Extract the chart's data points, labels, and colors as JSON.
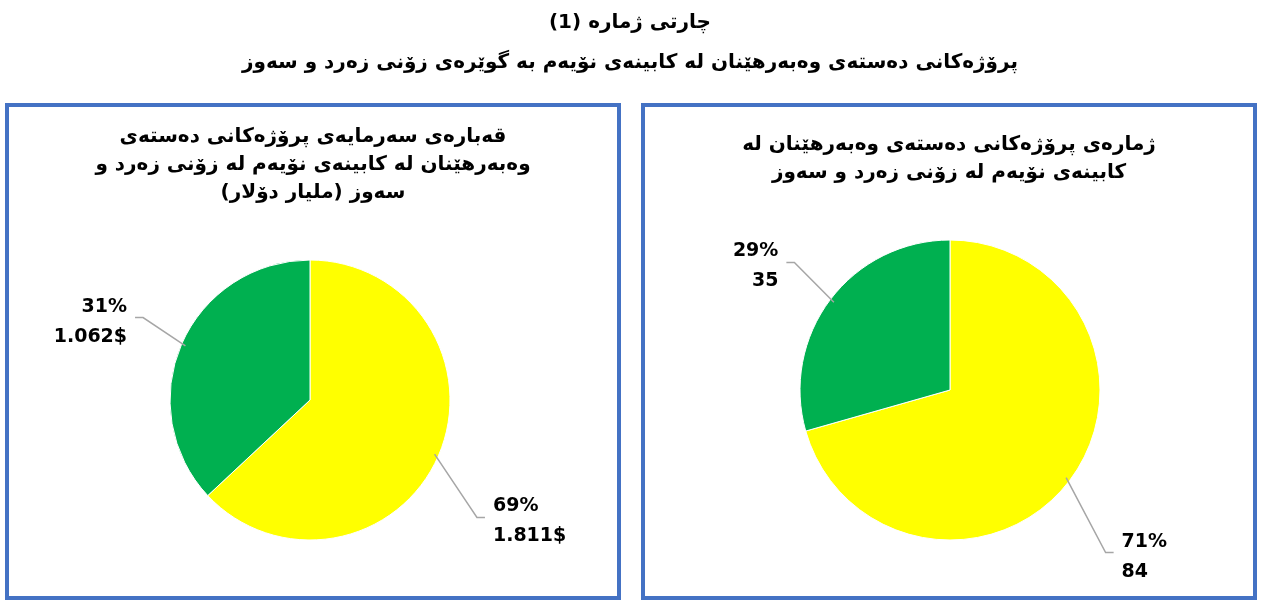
{
  "chart_data": [
    {
      "type": "pie",
      "title": "قەبارەی سەرمایەی  پرۆژەکانی دەستەی وەبەرهێنان لە کابینەی نۆیەم لە زۆنی زەرد و سەوز (ملیار دۆلار)",
      "annotations": [
        "چارتی ژمارە (1)",
        "پرۆژەکانی دەستەی وەبەرهێنان لە کابینەی نۆیەم بە گوێرەی زۆنی زەرد و سەوز"
      ],
      "categories": [
        null,
        null
      ],
      "values": [
        1.811,
        1.062
      ],
      "colors": [
        "#ffff00",
        "#00b050"
      ],
      "value_labels": [
        "69%\n1.811$",
        "31%\n1.062$"
      ]
    },
    {
      "type": "pie",
      "title": "ژمارەی پرۆژەکانی دەستەی وەبەرهێنان لە کابینەی نۆیەم لە زۆنی زەرد و سەوز",
      "categories": [
        null,
        null
      ],
      "values": [
        84,
        35
      ],
      "colors": [
        "#ffff00",
        "#00b050"
      ],
      "value_labels": [
        "71%\n84",
        "29%\n35"
      ]
    }
  ]
}
